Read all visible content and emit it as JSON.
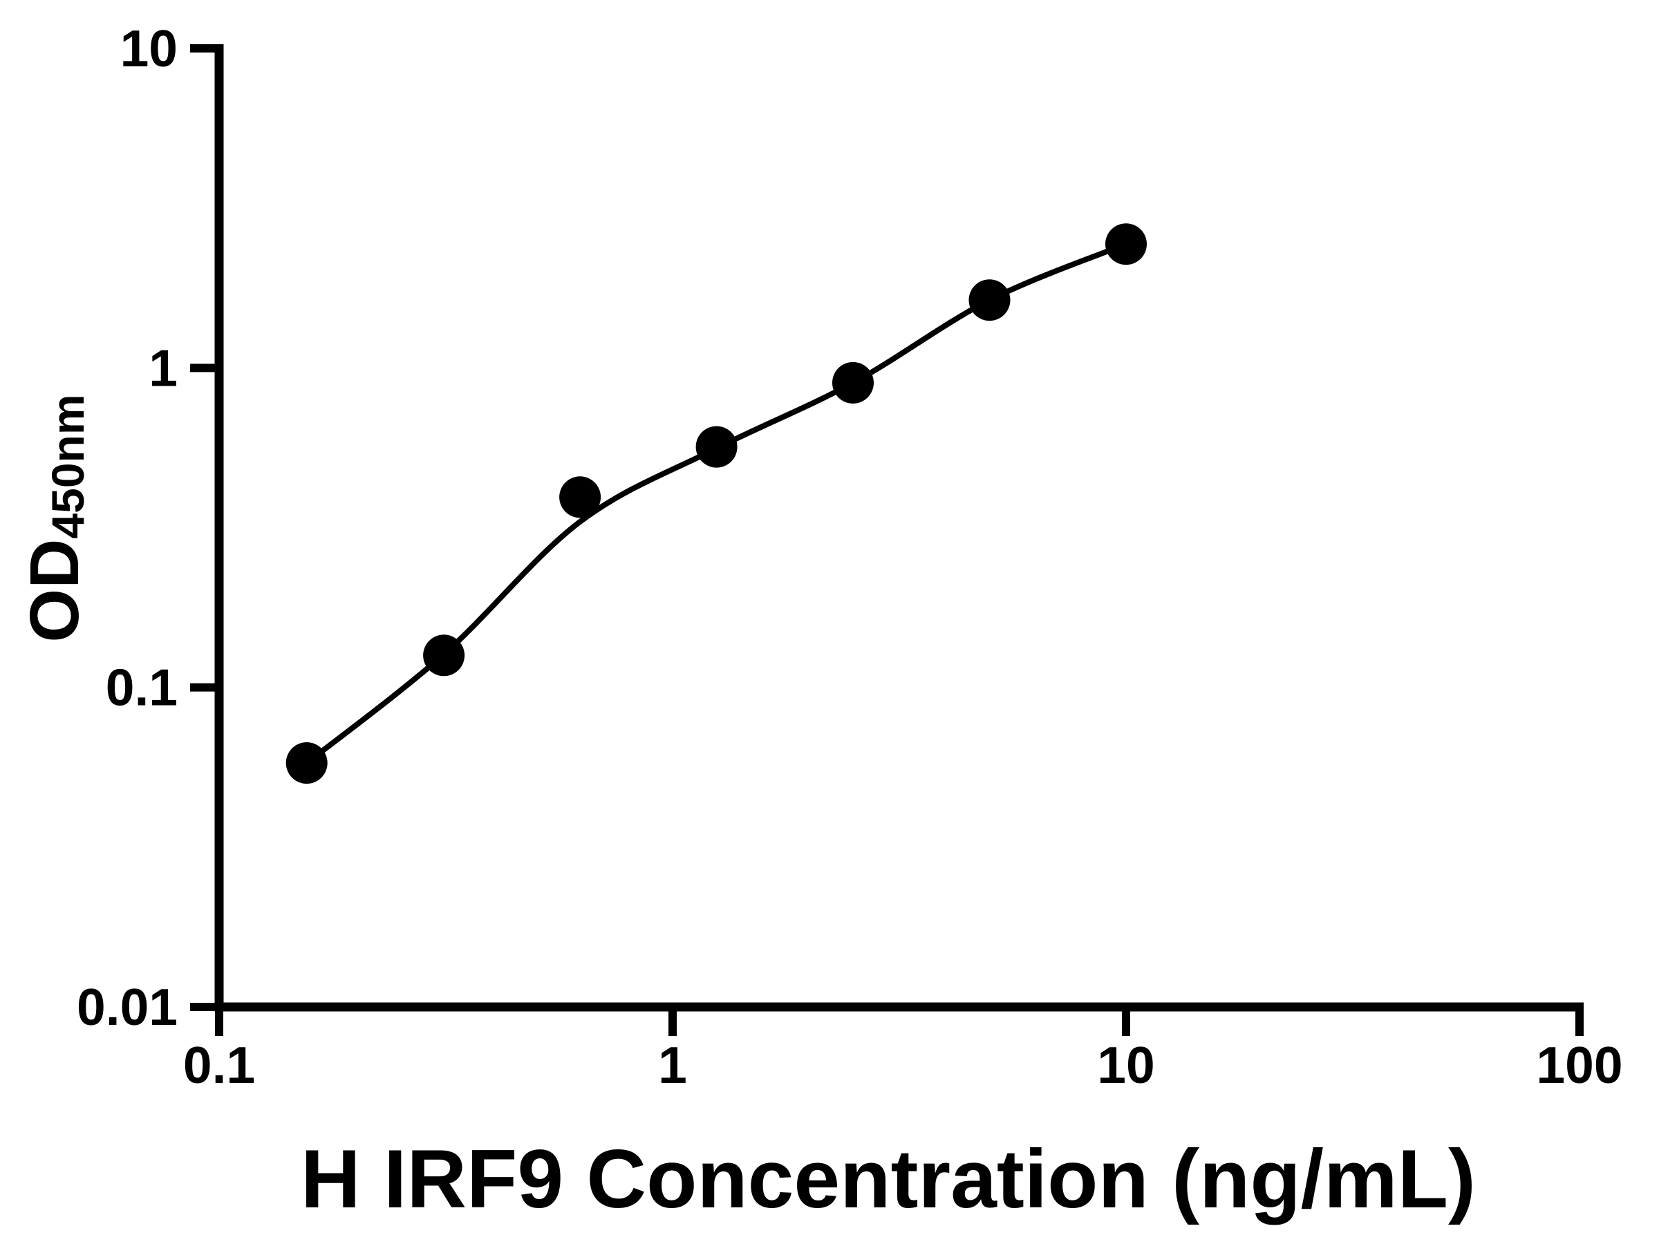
{
  "figure": {
    "background_color": "#ffffff",
    "foreground_color": "#000000"
  },
  "chart_data": {
    "type": "scatter",
    "title": "",
    "xlabel": "H IRF9 Concentration (ng/mL)",
    "ylabel": "OD",
    "ylabel_subscript": "450nm",
    "x_scale": "log",
    "y_scale": "log",
    "xlim": [
      0.1,
      100
    ],
    "ylim": [
      0.01,
      10
    ],
    "x_ticks": [
      0.1,
      1,
      10,
      100
    ],
    "x_tick_labels": [
      "0.1",
      "1",
      "10",
      "100"
    ],
    "y_ticks": [
      0.01,
      0.1,
      1,
      10
    ],
    "y_tick_labels": [
      "0.01",
      "0.1",
      "1",
      "10"
    ],
    "grid": false,
    "legend": "none",
    "series": [
      {
        "name": "standard-points",
        "type": "scatter",
        "marker": "circle",
        "marker_color": "#000000",
        "x": [
          0.156,
          0.313,
          0.625,
          1.25,
          2.5,
          5,
          10
        ],
        "y": [
          0.058,
          0.126,
          0.394,
          0.566,
          0.898,
          1.63,
          2.44
        ]
      },
      {
        "name": "fitted-curve",
        "type": "line",
        "line_color": "#000000",
        "x": [
          0.156,
          0.313,
          0.625,
          1.25,
          2.5,
          5,
          10
        ],
        "y": [
          0.058,
          0.127,
          0.33,
          0.56,
          0.898,
          1.63,
          2.44
        ]
      }
    ]
  }
}
